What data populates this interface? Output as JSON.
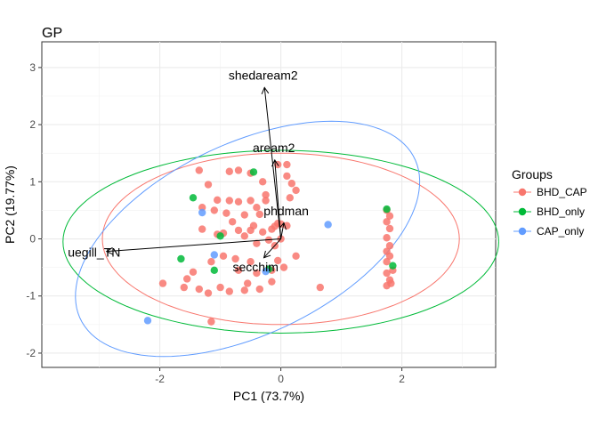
{
  "chart_data": {
    "type": "scatter",
    "title": "GP",
    "xlabel": "PC1 (73.7%)",
    "ylabel": "PC2 (19.77%)",
    "xlim": [
      -3.95,
      3.55
    ],
    "ylim": [
      -2.25,
      3.45
    ],
    "x_ticks": [
      -2,
      0,
      2
    ],
    "y_ticks": [
      -2,
      -1,
      0,
      1,
      2,
      3
    ],
    "grid": true,
    "legend": {
      "title": "Groups",
      "position": "right"
    },
    "series": [
      {
        "name": "BHD_CAP",
        "color": "#F8766D",
        "points": [
          [
            -1.35,
            1.2
          ],
          [
            -1.2,
            0.95
          ],
          [
            -1.05,
            0.68
          ],
          [
            -0.85,
            0.67
          ],
          [
            -0.7,
            0.65
          ],
          [
            -0.5,
            0.67
          ],
          [
            -0.4,
            0.55
          ],
          [
            -0.35,
            0.43
          ],
          [
            -0.6,
            0.42
          ],
          [
            -0.9,
            0.45
          ],
          [
            -1.1,
            0.5
          ],
          [
            -1.3,
            0.55
          ],
          [
            -0.8,
            0.3
          ],
          [
            -0.5,
            0.15
          ],
          [
            -0.3,
            0.12
          ],
          [
            -0.15,
            0.17
          ],
          [
            -0.45,
            0.23
          ],
          [
            -0.95,
            0.1
          ],
          [
            -1.05,
            0.08
          ],
          [
            -1.3,
            0.17
          ],
          [
            -0.7,
            0.15
          ],
          [
            -0.6,
            0.05
          ],
          [
            -0.4,
            -0.08
          ],
          [
            -0.2,
            -0.02
          ],
          [
            -0.1,
            0.22
          ],
          [
            -0.05,
            0.27
          ],
          [
            0.0,
            0.26
          ],
          [
            0.1,
            0.23
          ],
          [
            -0.25,
            0.77
          ],
          [
            -0.25,
            0.67
          ],
          [
            -0.05,
            1.3
          ],
          [
            0.1,
            1.3
          ],
          [
            0.1,
            1.1
          ],
          [
            0.18,
            0.97
          ],
          [
            0.25,
            0.85
          ],
          [
            0.15,
            0.72
          ],
          [
            -0.3,
            1.0
          ],
          [
            -0.5,
            1.15
          ],
          [
            -0.7,
            1.2
          ],
          [
            -0.85,
            1.18
          ],
          [
            0.0,
            0.0
          ],
          [
            -0.1,
            -0.12
          ],
          [
            0.25,
            -0.3
          ],
          [
            -0.05,
            -0.38
          ],
          [
            -0.15,
            -0.55
          ],
          [
            -0.4,
            -0.6
          ],
          [
            -0.55,
            -0.78
          ],
          [
            -0.7,
            -0.55
          ],
          [
            -0.5,
            -0.4
          ],
          [
            -0.75,
            -0.35
          ],
          [
            -0.95,
            -0.3
          ],
          [
            -1.15,
            -0.4
          ],
          [
            -1.45,
            -0.58
          ],
          [
            -1.55,
            -0.7
          ],
          [
            -1.35,
            -0.88
          ],
          [
            -1.2,
            -0.95
          ],
          [
            -1.0,
            -0.85
          ],
          [
            -0.85,
            -0.92
          ],
          [
            -0.6,
            -0.9
          ],
          [
            -0.35,
            -0.88
          ],
          [
            -0.15,
            -0.75
          ],
          [
            0.05,
            -0.5
          ],
          [
            -1.6,
            -0.85
          ],
          [
            -1.15,
            -1.45
          ],
          [
            -1.95,
            -0.78
          ],
          [
            0.65,
            -0.85
          ],
          [
            1.75,
            0.5
          ],
          [
            1.8,
            0.4
          ],
          [
            1.75,
            0.3
          ],
          [
            1.8,
            0.18
          ],
          [
            1.75,
            0.02
          ],
          [
            1.8,
            -0.12
          ],
          [
            1.75,
            -0.22
          ],
          [
            1.8,
            -0.3
          ],
          [
            1.75,
            -0.4
          ],
          [
            1.85,
            -0.55
          ],
          [
            1.75,
            -0.6
          ],
          [
            1.8,
            -0.72
          ],
          [
            1.75,
            -0.82
          ],
          [
            1.82,
            -0.78
          ]
        ]
      },
      {
        "name": "BHD_only",
        "color": "#00BA38",
        "points": [
          [
            -1.45,
            0.72
          ],
          [
            -0.45,
            1.17
          ],
          [
            -1.0,
            0.05
          ],
          [
            -1.65,
            -0.35
          ],
          [
            -1.1,
            -0.55
          ],
          [
            -0.2,
            -0.53
          ],
          [
            1.75,
            0.52
          ],
          [
            1.85,
            -0.47
          ]
        ]
      },
      {
        "name": "CAP_only",
        "color": "#619CFF",
        "points": [
          [
            -1.3,
            0.46
          ],
          [
            -1.1,
            -0.28
          ],
          [
            -0.25,
            -0.57
          ],
          [
            0.78,
            0.25
          ],
          [
            -2.2,
            -1.43
          ]
        ]
      }
    ],
    "ellipses": [
      {
        "group": "BHD_CAP",
        "cx": 0.0,
        "cy": 0.0,
        "rx": 2.95,
        "ry": 1.5,
        "angle_deg": 0
      },
      {
        "group": "BHD_only",
        "cx": 0.0,
        "cy": -0.05,
        "rx": 3.6,
        "ry": 1.6,
        "angle_deg": 0
      },
      {
        "group": "CAP_only",
        "cx": -0.55,
        "cy": 0.0,
        "rx": 3.1,
        "ry": 1.65,
        "angle_deg": 28
      }
    ],
    "loadings": [
      {
        "label": "shedaream2",
        "x": -0.27,
        "y": 2.65
      },
      {
        "label": "aream2",
        "x": -0.1,
        "y": 1.38
      },
      {
        "label": "phdman",
        "x": 0.05,
        "y": 0.28
      },
      {
        "label": "secchim",
        "x": -0.28,
        "y": -0.33
      },
      {
        "label": "uegill_TN",
        "x": -2.88,
        "y": -0.22
      }
    ]
  }
}
